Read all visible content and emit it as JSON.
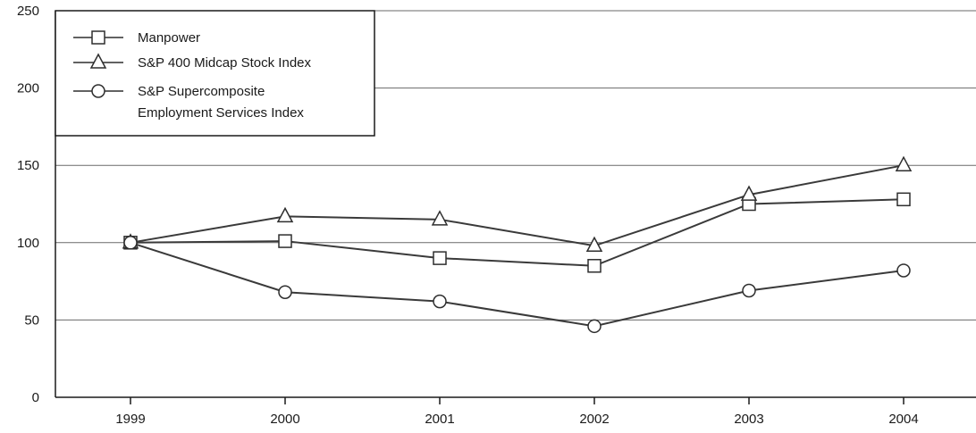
{
  "chart_data": {
    "type": "line",
    "title": "",
    "xlabel": "",
    "ylabel": "",
    "categories": [
      "1999",
      "2000",
      "2001",
      "2002",
      "2003",
      "2004"
    ],
    "ylim": [
      0,
      250
    ],
    "yticks": [
      0,
      50,
      100,
      150,
      200,
      250
    ],
    "grid": "horizontal",
    "legend_position": "top-left",
    "series": [
      {
        "name": "Manpower",
        "marker": "square",
        "values": [
          100,
          101,
          90,
          85,
          125,
          128
        ]
      },
      {
        "name": "S&P 400 Midcap Stock Index",
        "marker": "triangle",
        "values": [
          100,
          117,
          115,
          98,
          131,
          150
        ]
      },
      {
        "name": "S&P Supercomposite Employment Services Index",
        "name_lines": [
          "S&P Supercomposite",
          "Employment Services Index"
        ],
        "marker": "circle",
        "values": [
          100,
          68,
          62,
          46,
          69,
          82
        ]
      }
    ]
  }
}
